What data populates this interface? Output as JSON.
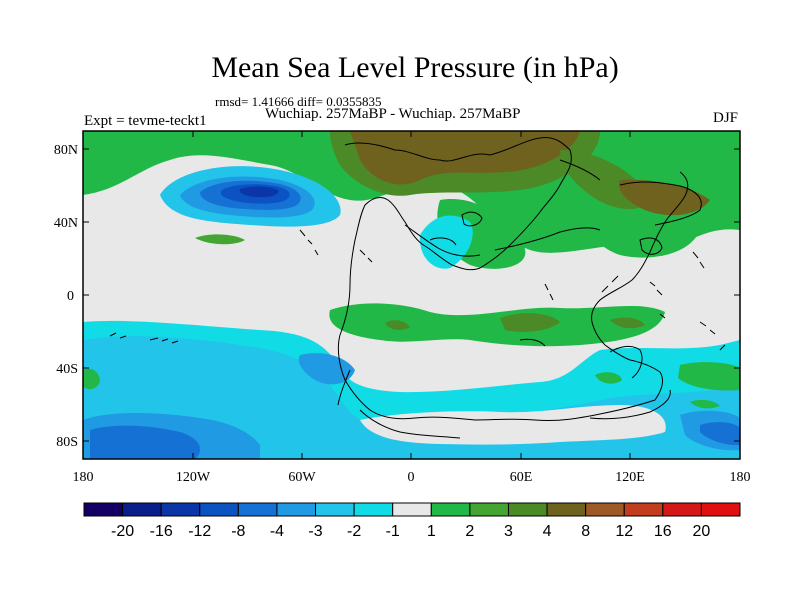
{
  "plot": {
    "title": "Mean Sea Level Pressure (in hPa)",
    "stats": "rmsd= 1.41666 diff= 0.0355835",
    "subtitle": "Wuchiap. 257MaBP - Wuchiap. 257MaBP",
    "expt": "Expt = tevme-teckt1",
    "season": "DJF"
  },
  "axes": {
    "lat_ticks": [
      "80N",
      "40N",
      "0",
      "40S",
      "80S"
    ],
    "lon_ticks": [
      "180",
      "120W",
      "60W",
      "0",
      "60E",
      "120E",
      "180"
    ]
  },
  "colorbar": {
    "labels": [
      "-20",
      "-16",
      "-12",
      "-8",
      "-4",
      "-3",
      "-2",
      "-1",
      "1",
      "2",
      "3",
      "4",
      "8",
      "12",
      "16",
      "20"
    ],
    "colors": [
      "#140064",
      "#0b1f8a",
      "#0a36a8",
      "#0b52c2",
      "#1572d4",
      "#209ae2",
      "#23c4ea",
      "#11dce6",
      "#e8e8e8",
      "#22b848",
      "#45a532",
      "#4b8a26",
      "#6f621f",
      "#9d5a28",
      "#c23c1e",
      "#d41818",
      "#e01010"
    ]
  },
  "colors": {
    "background_field": "#e8e8e8",
    "coastline": "#000000"
  }
}
